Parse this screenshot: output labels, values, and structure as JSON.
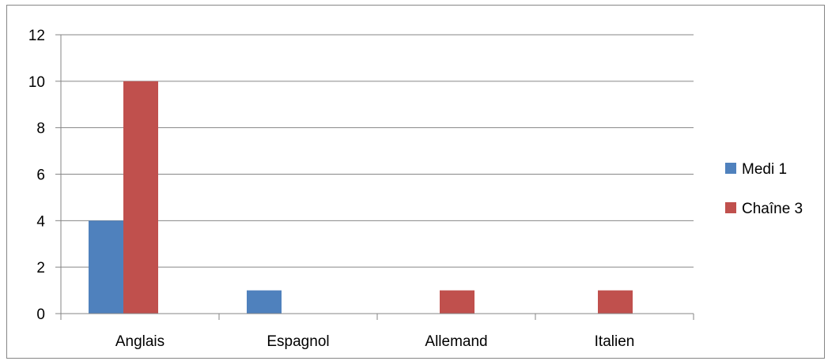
{
  "chart_data": {
    "type": "bar",
    "categories": [
      "Anglais",
      "Espagnol",
      "Allemand",
      "Italien"
    ],
    "series": [
      {
        "name": "Medi 1",
        "values": [
          4,
          1,
          0,
          0
        ],
        "color": "#4F81BD"
      },
      {
        "name": "Chaîne 3",
        "values": [
          10,
          0,
          1,
          1
        ],
        "color": "#C0504D"
      }
    ],
    "ylim": [
      0,
      12
    ],
    "yticks": [
      0,
      2,
      4,
      6,
      8,
      10,
      12
    ],
    "grid": true,
    "legend": "right",
    "title": "",
    "xlabel": "",
    "ylabel": ""
  }
}
